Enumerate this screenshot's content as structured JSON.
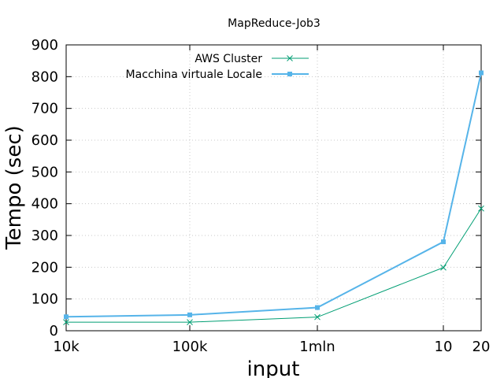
{
  "chart_data": {
    "type": "line",
    "title": "MapReduce-Job3",
    "xlabel": "input",
    "ylabel": "Tempo (sec)",
    "categories": [
      "10k",
      "100k",
      "1mln",
      "10",
      "20"
    ],
    "ylim": [
      0,
      900
    ],
    "yticks": [
      0,
      100,
      200,
      300,
      400,
      500,
      600,
      700,
      800,
      900
    ],
    "grid": true,
    "legend_position": "top-left",
    "series": [
      {
        "name": "AWS Cluster",
        "values": [
          27,
          27,
          43,
          199,
          385
        ],
        "color": "#009e73",
        "marker": "cross"
      },
      {
        "name": "Macchina virtuale Locale",
        "values": [
          44,
          50,
          73,
          280,
          812
        ],
        "color": "#56b4e9",
        "marker": "filled-square"
      }
    ]
  }
}
